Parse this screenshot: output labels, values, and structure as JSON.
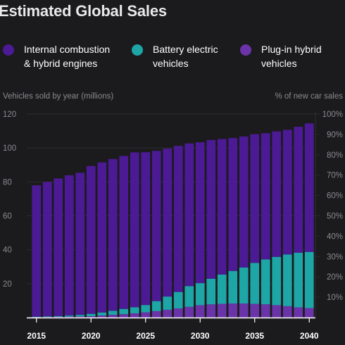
{
  "title": "Estimated Global Sales",
  "legend": [
    {
      "line1": "Internal combustion",
      "line2": "& hybrid engines",
      "color": "#4b1a94"
    },
    {
      "line1": "Battery electric",
      "line2": "vehicles",
      "color": "#1ea5a6"
    },
    {
      "line1": "Plug-in hybrid",
      "line2": "vehicles",
      "color": "#6a34a8"
    }
  ],
  "chart_data": {
    "type": "bar",
    "stacked": true,
    "ylabel_left": "Vehicles sold by year (millions)",
    "ylabel_right": "% of new car sales",
    "ylim": [
      0,
      120
    ],
    "yticks_left": [
      20,
      40,
      60,
      80,
      100,
      120
    ],
    "yticks_right": [
      "10%",
      "20%",
      "30%",
      "40%",
      "50%",
      "60%",
      "70%",
      "80%",
      "90%",
      "100%"
    ],
    "yticks_right_values": [
      10,
      20,
      30,
      40,
      50,
      60,
      70,
      80,
      90,
      100
    ],
    "xticks": [
      "2015",
      "2020",
      "2025",
      "2030",
      "2035",
      "2040"
    ],
    "xticks_values": [
      2015,
      2020,
      2025,
      2030,
      2035,
      2040
    ],
    "x": [
      2015,
      2016,
      2017,
      2018,
      2019,
      2020,
      2021,
      2022,
      2023,
      2024,
      2025,
      2026,
      2027,
      2028,
      2029,
      2030,
      2031,
      2032,
      2033,
      2034,
      2035,
      2036,
      2037,
      2038,
      2039,
      2040
    ],
    "grid": true,
    "series": [
      {
        "name": "Plug-in hybrid vehicles",
        "color": "#6a34a8",
        "values": [
          0.2,
          0.3,
          0.4,
          0.5,
          0.6,
          0.8,
          1.2,
          1.6,
          2.0,
          2.5,
          3.1,
          3.8,
          4.6,
          5.4,
          6.3,
          7.3,
          7.8,
          8.1,
          8.3,
          8.3,
          8.1,
          7.8,
          7.3,
          6.7,
          6.0,
          5.6
        ]
      },
      {
        "name": "Battery electric vehicles",
        "color": "#1ea5a6",
        "values": [
          0.3,
          0.4,
          0.5,
          0.7,
          1.0,
          1.4,
          1.8,
          2.4,
          3.1,
          3.6,
          4.3,
          5.9,
          7.8,
          9.7,
          12.2,
          13.0,
          15.1,
          17.3,
          19.2,
          21.2,
          24.1,
          26.5,
          28.5,
          30.5,
          32.2,
          33.1
        ]
      },
      {
        "name": "Internal combustion & hybrid engines",
        "color": "#4b1a94",
        "values": [
          77.5,
          79.3,
          81.1,
          82.7,
          83.8,
          87.2,
          88.5,
          89.5,
          90.2,
          91.3,
          90.1,
          88.6,
          87.2,
          86.1,
          84.2,
          83.1,
          81.8,
          79.9,
          78.4,
          77.3,
          75.9,
          74.4,
          74.0,
          73.5,
          74.3,
          75.8
        ]
      }
    ]
  }
}
